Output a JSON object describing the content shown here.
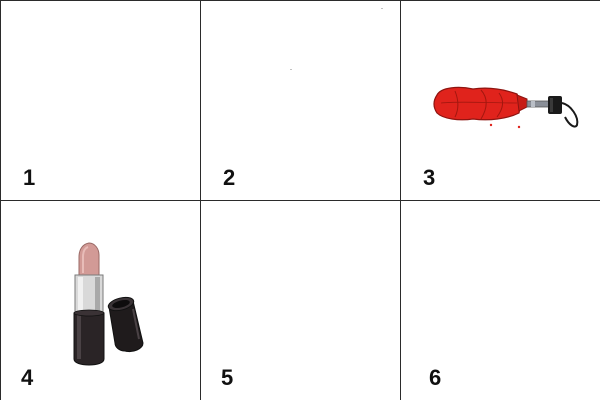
{
  "grid": {
    "cells": [
      {
        "number": "1",
        "item": "empty"
      },
      {
        "number": "2",
        "item": "empty"
      },
      {
        "number": "3",
        "item": "folded-umbrella-icon"
      },
      {
        "number": "4",
        "item": "lipstick-icon"
      },
      {
        "number": "5",
        "item": "empty"
      },
      {
        "number": "6",
        "item": "empty"
      }
    ]
  },
  "colors": {
    "grid_line": "#2b2b2b",
    "umbrella_red": "#e0231c",
    "lipstick_pink": "#d29a96",
    "lipstick_case": "#2a2426"
  }
}
